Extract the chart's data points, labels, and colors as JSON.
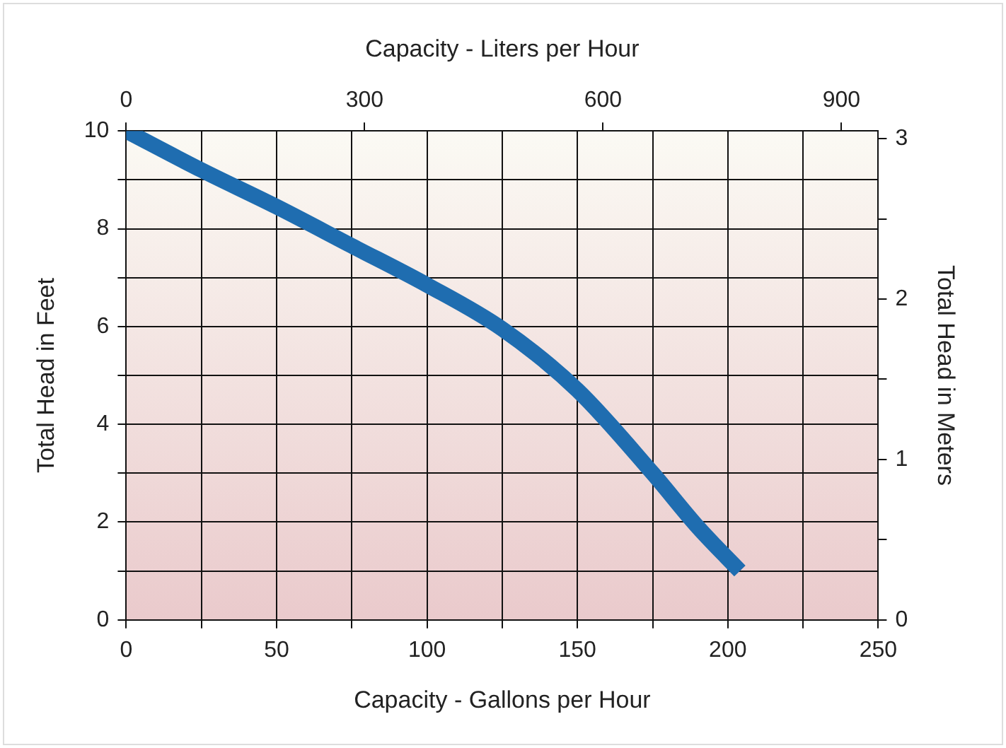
{
  "chart_data": {
    "type": "line",
    "xlabel": "Capacity - Gallons per Hour",
    "x2label": "Capacity - Liters per Hour",
    "ylabel": "Total Head in Feet",
    "y2label": "Total Head in Meters",
    "x": [
      0,
      25,
      50,
      75,
      100,
      125,
      150,
      175,
      190,
      204
    ],
    "series": [
      {
        "color": "#1f6db0",
        "values": [
          10,
          9.2,
          8.45,
          7.65,
          6.85,
          5.95,
          4.7,
          3.0,
          1.9,
          1.0
        ]
      }
    ],
    "xlim": [
      0,
      250
    ],
    "xticks": [
      0,
      {
        "value": 25,
        "label": null
      },
      50,
      {
        "value": 75,
        "label": null
      },
      100,
      {
        "value": 125,
        "label": null
      },
      150,
      {
        "value": 175,
        "label": null
      },
      200,
      {
        "value": 225,
        "label": null
      },
      250
    ],
    "x2lim": [
      0,
      946.35
    ],
    "x2ticks": [
      0,
      300,
      600,
      900
    ],
    "ylim": [
      0,
      10
    ],
    "yticks": [
      0,
      {
        "value": 1,
        "label": null
      },
      2,
      {
        "value": 3,
        "label": null
      },
      4,
      {
        "value": 5,
        "label": null
      },
      6,
      {
        "value": 7,
        "label": null
      },
      8,
      {
        "value": 9,
        "label": null
      },
      10
    ],
    "y2lim": [
      0,
      3.048
    ],
    "y2ticks": [
      0,
      {
        "value": 0.5,
        "label": null
      },
      1,
      {
        "value": 1.5,
        "label": null
      },
      2,
      {
        "value": 2.5,
        "label": null
      },
      3
    ],
    "grid": true,
    "legend": false,
    "marker": "none",
    "line_style": "solid"
  }
}
